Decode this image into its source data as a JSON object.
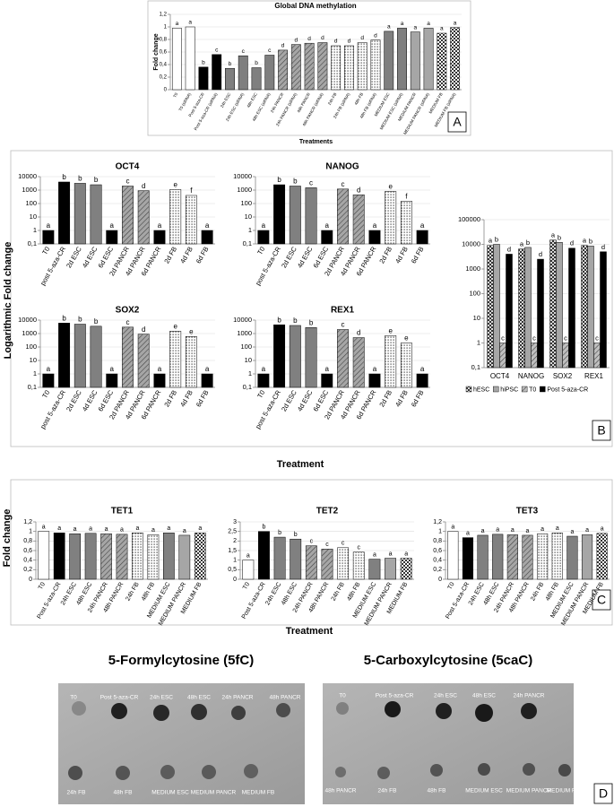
{
  "chart_data": [
    {
      "type": "bar",
      "title": "Global DNA methylation",
      "ylabel": "Fold change",
      "xlabel": "Treatments",
      "grid": true,
      "log_scale": false,
      "categories": [
        "T0",
        "T0 (siRNA)",
        "Post 5-aza-CR",
        "Post 5-aza-CR (siRNA)",
        "24h ESC",
        "24h ESC (siRNA)",
        "48h ESC",
        "48h ESC (siRNA)",
        "24h PANCR",
        "24h PANCR (siRNA)",
        "48h PANCR",
        "48h PANCR (siRNA)",
        "24h FB",
        "24h FB (siRNA)",
        "48h FB",
        "48h FB (siRNA)",
        "MEDIUM ESC",
        "MEDIUM ESC (siRNA)",
        "MEDIUM PANCR",
        "MEDIUM PANCR (siRNA)",
        "MEDIUM FB",
        "MEDIUM FB (siRNA)"
      ],
      "values": [
        0.98,
        1.0,
        0.36,
        0.56,
        0.34,
        0.54,
        0.35,
        0.55,
        0.63,
        0.72,
        0.74,
        0.75,
        0.7,
        0.7,
        0.75,
        0.79,
        0.93,
        0.98,
        0.92,
        0.98,
        0.9,
        0.99
      ],
      "annotations": [
        "a",
        "a",
        "b",
        "c",
        "b",
        "c",
        "b",
        "c",
        "d",
        "d",
        "d",
        "d",
        "d",
        "d",
        "d",
        "d",
        "a",
        "a",
        "a",
        "a",
        "a",
        "a"
      ],
      "colors": [
        "#ffffff",
        "#ffffff",
        "#000000",
        "#000000",
        "#7f7f7f",
        "#7f7f7f",
        "#7f7f7f",
        "#7f7f7f",
        "#a6a6a6",
        "#a6a6a6",
        "#a6a6a6",
        "#a6a6a6",
        "#ffffff",
        "#ffffff",
        "#ffffff",
        "#ffffff",
        "#7f7f7f",
        "#7f7f7f",
        "#a6a6a6",
        "#a6a6a6",
        "#ffffff",
        "#ffffff"
      ],
      "patterns": [
        "solid",
        "solid",
        "solid",
        "solid",
        "solid",
        "solid",
        "solid",
        "solid",
        "hatch",
        "hatch",
        "hatch",
        "hatch",
        "dots",
        "dots",
        "dots",
        "dots",
        "solid",
        "solid",
        "solid",
        "solid",
        "check",
        "check"
      ],
      "ylim": [
        0,
        1.2
      ],
      "yticks": [
        0,
        {
          "value": 0.2,
          "label": "0,2"
        },
        {
          "value": 0.4,
          "label": "0,4"
        },
        {
          "value": 0.6,
          "label": "0,6"
        },
        {
          "value": 0.8,
          "label": "0,8"
        },
        1,
        {
          "value": 1.2,
          "label": "1,2"
        }
      ]
    },
    {
      "type": "bar",
      "title": "OCT4",
      "grid": true,
      "log_scale": true,
      "categories": [
        "T0",
        "post 5-aza-CR",
        "2d ESC",
        "4d ESC",
        "6d ESC",
        "2d PANCR",
        "4d PANCR",
        "6d PANCR",
        "2d FB",
        "4d FB",
        "6d FB"
      ],
      "values": [
        1,
        4000,
        3200,
        2500,
        1,
        2000,
        900,
        1,
        1100,
        400,
        1
      ],
      "annotations": [
        "a",
        "b",
        "b",
        "b",
        "a",
        "c",
        "d",
        "a",
        "e",
        "f",
        "a"
      ],
      "colors": [
        "#000000",
        "#000000",
        "#808080",
        "#808080",
        "#000000",
        "#a6a6a6",
        "#a6a6a6",
        "#000000",
        "#ffffff",
        "#ffffff",
        "#000000"
      ],
      "patterns": [
        "solid",
        "solid",
        "solid",
        "solid",
        "solid",
        "hatch",
        "hatch",
        "solid",
        "dots",
        "dots",
        "solid"
      ],
      "ylim": [
        0.1,
        10000
      ],
      "yticks": [
        {
          "value": 0.1,
          "label": "0,1"
        },
        1,
        10,
        100,
        1000,
        10000
      ]
    },
    {
      "type": "bar",
      "title": "NANOG",
      "grid": true,
      "log_scale": true,
      "categories": [
        "T0",
        "post 5-aza-CR",
        "2d ESC",
        "4d ESC",
        "6d ESC",
        "2d PANCR",
        "4d PANCR",
        "6d PANCR",
        "2d FB",
        "4d FB",
        "6d FB"
      ],
      "values": [
        1,
        2500,
        2000,
        1500,
        1,
        1200,
        450,
        1,
        800,
        150,
        1
      ],
      "annotations": [
        "a",
        "b",
        "b",
        "c",
        "a",
        "c",
        "d",
        "a",
        "e",
        "f",
        "a"
      ],
      "colors": [
        "#000000",
        "#000000",
        "#808080",
        "#808080",
        "#000000",
        "#a6a6a6",
        "#a6a6a6",
        "#000000",
        "#ffffff",
        "#ffffff",
        "#000000"
      ],
      "patterns": [
        "solid",
        "solid",
        "solid",
        "solid",
        "solid",
        "hatch",
        "hatch",
        "solid",
        "dots",
        "dots",
        "solid"
      ],
      "ylim": [
        0.1,
        10000
      ],
      "yticks": [
        {
          "value": 0.1,
          "label": "0,1"
        },
        1,
        10,
        100,
        1000,
        10000
      ]
    },
    {
      "type": "bar",
      "title": "SOX2",
      "grid": true,
      "log_scale": true,
      "categories": [
        "T0",
        "post 5-aza-CR",
        "2d ESC",
        "4d ESC",
        "6d ESC",
        "2d PANCR",
        "4d PANCR",
        "6d PANCR",
        "2d FB",
        "4d FB",
        "6d FB"
      ],
      "values": [
        1,
        6000,
        5000,
        3500,
        1,
        3000,
        900,
        1,
        1500,
        600,
        1
      ],
      "annotations": [
        "a",
        "b",
        "b",
        "b",
        "a",
        "c",
        "d",
        "a",
        "e",
        "e",
        "a"
      ],
      "colors": [
        "#000000",
        "#000000",
        "#808080",
        "#808080",
        "#000000",
        "#a6a6a6",
        "#a6a6a6",
        "#000000",
        "#ffffff",
        "#ffffff",
        "#000000"
      ],
      "patterns": [
        "solid",
        "solid",
        "solid",
        "solid",
        "solid",
        "hatch",
        "hatch",
        "solid",
        "dots",
        "dots",
        "solid"
      ],
      "ylim": [
        0.1,
        10000
      ],
      "yticks": [
        {
          "value": 0.1,
          "label": "0,1"
        },
        1,
        10,
        100,
        1000,
        10000
      ]
    },
    {
      "type": "bar",
      "title": "REX1",
      "grid": true,
      "log_scale": true,
      "categories": [
        "T0",
        "post 5-aza-CR",
        "2d ESC",
        "4d ESC",
        "6d ESC",
        "2d PANCR",
        "4d PANCR",
        "6d PANCR",
        "2d FB",
        "4d FB",
        "6d FB"
      ],
      "values": [
        1,
        4500,
        4000,
        2800,
        1,
        2000,
        500,
        1,
        700,
        200,
        1
      ],
      "annotations": [
        "a",
        "b",
        "b",
        "b",
        "a",
        "c",
        "d",
        "a",
        "e",
        "e",
        "a"
      ],
      "colors": [
        "#000000",
        "#000000",
        "#808080",
        "#808080",
        "#000000",
        "#a6a6a6",
        "#a6a6a6",
        "#000000",
        "#ffffff",
        "#ffffff",
        "#000000"
      ],
      "patterns": [
        "solid",
        "solid",
        "solid",
        "solid",
        "solid",
        "hatch",
        "hatch",
        "solid",
        "dots",
        "dots",
        "solid"
      ],
      "ylim": [
        0.1,
        10000
      ],
      "yticks": [
        {
          "value": 0.1,
          "label": "0,1"
        },
        1,
        10,
        100,
        1000,
        10000
      ]
    },
    {
      "type": "bar",
      "grid": true,
      "log_scale": true,
      "legend": "bottom",
      "categories": [
        "OCT4",
        "NANOG",
        "SOX2",
        "REX1"
      ],
      "series": [
        {
          "name": "hESC",
          "color": "#d9d9d9",
          "pattern": "check",
          "values": [
            9000,
            6500,
            15000,
            9000
          ],
          "annotations": [
            "a",
            "a",
            "a",
            "a"
          ]
        },
        {
          "name": "hiPSC",
          "color": "#a6a6a6",
          "pattern": "solid",
          "values": [
            10000,
            7500,
            12000,
            8500
          ],
          "annotations": [
            "b",
            "b",
            "b",
            "b"
          ]
        },
        {
          "name": "T0",
          "color": "#bfbfbf",
          "pattern": "hatch",
          "values": [
            1,
            1,
            1,
            1
          ],
          "annotations": [
            "c",
            "c",
            "c",
            "c"
          ]
        },
        {
          "name": "Post 5-aza-CR",
          "color": "#000000",
          "pattern": "solid",
          "values": [
            4000,
            2500,
            7000,
            5000
          ],
          "annotations": [
            "d",
            "d",
            "d",
            "d"
          ]
        }
      ],
      "ylim": [
        0.1,
        100000
      ],
      "yticks": [
        {
          "value": 0.1,
          "label": "0,1"
        },
        1,
        10,
        100,
        1000,
        10000,
        100000
      ]
    },
    {
      "type": "bar",
      "title": "TET1",
      "grid": true,
      "log_scale": false,
      "categories": [
        "T0",
        "Post 5-aza-CR",
        "24h ESC",
        "48h ESC",
        "24h PANCR",
        "48h PANCR",
        "24h FB",
        "48h FB",
        "MEDIUM ESC",
        "MEDIUM PANCR",
        "MEDIUM FB"
      ],
      "values": [
        1.0,
        0.97,
        0.95,
        0.96,
        0.95,
        0.94,
        0.97,
        0.93,
        0.97,
        0.92,
        0.97
      ],
      "annotations": [
        "a",
        "a",
        "a",
        "a",
        "a",
        "a",
        "a",
        "a",
        "a",
        "a",
        "a"
      ],
      "colors": [
        "#ffffff",
        "#000000",
        "#808080",
        "#808080",
        "#a6a6a6",
        "#a6a6a6",
        "#ffffff",
        "#ffffff",
        "#808080",
        "#a6a6a6",
        "#ffffff"
      ],
      "patterns": [
        "solid",
        "solid",
        "solid",
        "solid",
        "hatch",
        "hatch",
        "dots",
        "dots",
        "solid",
        "solid",
        "check"
      ],
      "ylim": [
        0,
        1.2
      ],
      "yticks": [
        0,
        {
          "value": 0.2,
          "label": "0,2"
        },
        {
          "value": 0.4,
          "label": "0,4"
        },
        {
          "value": 0.6,
          "label": "0,6"
        },
        {
          "value": 0.8,
          "label": "0,8"
        },
        1,
        {
          "value": 1.2,
          "label": "1,2"
        }
      ]
    },
    {
      "type": "bar",
      "title": "TET2",
      "grid": true,
      "log_scale": false,
      "categories": [
        "T0",
        "Post 5-aza-CR",
        "24h ESC",
        "48h ESC",
        "24h PANCR",
        "48h PANCR",
        "24h FB",
        "48h FB",
        "MEDIUM ESC",
        "MEDIUM PANCR",
        "MEDIUM FB"
      ],
      "values": [
        1.0,
        2.5,
        2.2,
        2.1,
        1.75,
        1.58,
        1.65,
        1.42,
        1.05,
        1.1,
        1.1
      ],
      "annotations": [
        "a",
        "b",
        "b",
        "b",
        "c",
        "c",
        "c",
        "c",
        "a",
        "a",
        "a"
      ],
      "colors": [
        "#ffffff",
        "#000000",
        "#808080",
        "#808080",
        "#a6a6a6",
        "#a6a6a6",
        "#ffffff",
        "#ffffff",
        "#808080",
        "#a6a6a6",
        "#ffffff"
      ],
      "patterns": [
        "solid",
        "solid",
        "solid",
        "solid",
        "hatch",
        "hatch",
        "dots",
        "dots",
        "solid",
        "solid",
        "check"
      ],
      "ylim": [
        0,
        3
      ],
      "yticks": [
        0,
        {
          "value": 0.5,
          "label": "0,5"
        },
        1,
        {
          "value": 1.5,
          "label": "1,5"
        },
        2,
        {
          "value": 2.5,
          "label": "2,5"
        },
        3
      ]
    },
    {
      "type": "bar",
      "title": "TET3",
      "grid": true,
      "log_scale": false,
      "categories": [
        "T0",
        "Post 5-aza-CR",
        "24h ESC",
        "48h ESC",
        "24h PANCR",
        "48h PANCR",
        "24h FB",
        "48h FB",
        "MEDIUM ESC",
        "MEDIUM PANCR",
        "MEDIUM FB"
      ],
      "values": [
        1.0,
        0.87,
        0.92,
        0.94,
        0.93,
        0.92,
        0.95,
        0.97,
        0.9,
        0.93,
        0.96
      ],
      "annotations": [
        "a",
        "a",
        "a",
        "a",
        "a",
        "a",
        "a",
        "a",
        "a",
        "a",
        "a"
      ],
      "colors": [
        "#ffffff",
        "#000000",
        "#808080",
        "#808080",
        "#a6a6a6",
        "#a6a6a6",
        "#ffffff",
        "#ffffff",
        "#808080",
        "#a6a6a6",
        "#ffffff"
      ],
      "patterns": [
        "solid",
        "solid",
        "solid",
        "solid",
        "hatch",
        "hatch",
        "dots",
        "dots",
        "solid",
        "solid",
        "check"
      ],
      "ylim": [
        0,
        1.2
      ],
      "yticks": [
        0,
        {
          "value": 0.2,
          "label": "0,2"
        },
        {
          "value": 0.4,
          "label": "0,4"
        },
        {
          "value": 0.6,
          "label": "0,6"
        },
        {
          "value": 0.8,
          "label": "0,8"
        },
        1,
        {
          "value": 1.2,
          "label": "1,2"
        }
      ]
    }
  ],
  "figure": {
    "panel_labels": [
      "A",
      "B",
      "C",
      "D"
    ],
    "panel_b_ylabel": "Logarithmic Fold change",
    "panel_b_xlabel": "Treatment",
    "panel_c_ylabel": "Fold change",
    "panel_c_xlabel": "Treatment"
  },
  "blots": [
    {
      "title": "5-Formylcytosine (5fC)",
      "top_labels": [
        "T0",
        "Post 5-aza-CR",
        "24h ESC",
        "48h ESC",
        "24h PANCR",
        "48h PANCR"
      ],
      "bottom_labels": [
        "24h FB",
        "48h FB",
        "MEDIUM ESC",
        "MEDIUM PANCR",
        "MEDIUM FB"
      ]
    },
    {
      "title": "5-Carboxylcytosine (5caC)",
      "top_labels": [
        "T0",
        "Post 5-aza-CR",
        "24h ESC",
        "48h ESC",
        "24h PANCR"
      ],
      "bottom_labels": [
        "48h PANCR",
        "24h FB",
        "48h FB",
        "MEDIUM ESC",
        "MEDIUM PANCR",
        "MEDIUM FB"
      ]
    }
  ]
}
